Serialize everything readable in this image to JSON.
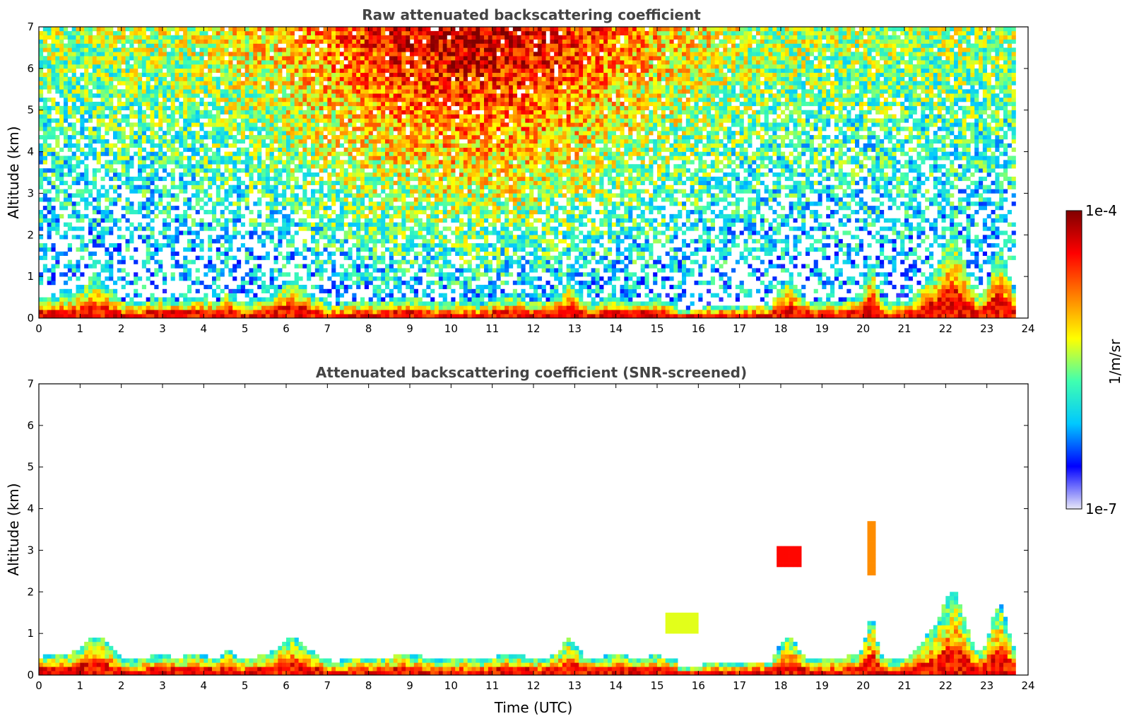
{
  "chart_data": [
    {
      "type": "heatmap",
      "title": "Raw attenuated backscattering coefficient",
      "xlabel": "",
      "ylabel": "Altitude (km)",
      "xlim": [
        0,
        24
      ],
      "ylim": [
        0,
        7
      ],
      "xticks": [
        0,
        1,
        2,
        3,
        4,
        5,
        6,
        7,
        8,
        9,
        10,
        11,
        12,
        13,
        14,
        15,
        16,
        17,
        18,
        19,
        20,
        21,
        22,
        23,
        24
      ],
      "yticks": [
        0,
        1,
        2,
        3,
        4,
        5,
        6,
        7
      ],
      "data_end_hour": 23.7,
      "cloud_layers": [
        {
          "start": 1.0,
          "end": 2.0,
          "top_km": 0.9
        },
        {
          "start": 5.8,
          "end": 6.7,
          "top_km": 1.1
        },
        {
          "start": 12.7,
          "end": 13.2,
          "top_km": 1.0
        },
        {
          "start": 15.2,
          "end": 16.0,
          "top_km": 1.4
        },
        {
          "start": 18.0,
          "end": 18.5,
          "top_km": 3.0
        },
        {
          "start": 20.0,
          "end": 20.4,
          "top_km": 3.6
        },
        {
          "start": 21.5,
          "end": 23.6,
          "top_km": 2.2
        }
      ]
    },
    {
      "type": "heatmap",
      "title": "Attenuated backscattering coefficient (SNR-screened)",
      "xlabel": "Time (UTC)",
      "ylabel": "Altitude (km)",
      "xlim": [
        0,
        24
      ],
      "ylim": [
        0,
        7
      ],
      "xticks": [
        0,
        1,
        2,
        3,
        4,
        5,
        6,
        7,
        8,
        9,
        10,
        11,
        12,
        13,
        14,
        15,
        16,
        17,
        18,
        19,
        20,
        21,
        22,
        23,
        24
      ],
      "yticks": [
        0,
        1,
        2,
        3,
        4,
        5,
        6,
        7
      ],
      "data_end_hour": 23.7
    }
  ],
  "colorbar": {
    "max_label": "1e-4",
    "min_label": "1e-7",
    "unit_label": "1/m/sr",
    "colors": [
      "#e8e8f8",
      "#0000ff",
      "#00c8ff",
      "#40ffb0",
      "#ffff00",
      "#ff8000",
      "#ff0000",
      "#800000"
    ]
  }
}
